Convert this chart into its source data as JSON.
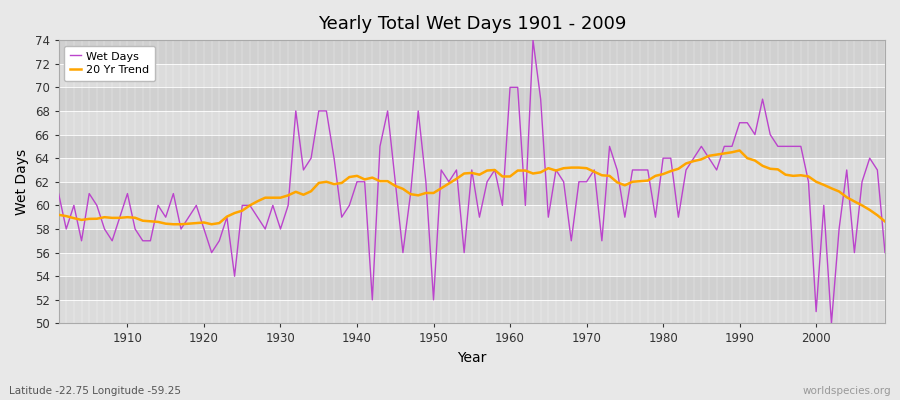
{
  "title": "Yearly Total Wet Days 1901 - 2009",
  "xlabel": "Year",
  "ylabel": "Wet Days",
  "subtitle": "Latitude -22.75 Longitude -59.25",
  "watermark": "worldspecies.org",
  "years": [
    1901,
    1902,
    1903,
    1904,
    1905,
    1906,
    1907,
    1908,
    1909,
    1910,
    1911,
    1912,
    1913,
    1914,
    1915,
    1916,
    1917,
    1918,
    1919,
    1920,
    1921,
    1922,
    1923,
    1924,
    1925,
    1926,
    1927,
    1928,
    1929,
    1930,
    1931,
    1932,
    1933,
    1934,
    1935,
    1936,
    1937,
    1938,
    1939,
    1940,
    1941,
    1942,
    1943,
    1944,
    1945,
    1946,
    1947,
    1948,
    1949,
    1950,
    1951,
    1952,
    1953,
    1954,
    1955,
    1956,
    1957,
    1958,
    1959,
    1960,
    1961,
    1962,
    1963,
    1964,
    1965,
    1966,
    1967,
    1968,
    1969,
    1970,
    1971,
    1972,
    1973,
    1974,
    1975,
    1976,
    1977,
    1978,
    1979,
    1980,
    1981,
    1982,
    1983,
    1984,
    1985,
    1986,
    1987,
    1988,
    1989,
    1990,
    1991,
    1992,
    1993,
    1994,
    1995,
    1996,
    1997,
    1998,
    1999,
    2000,
    2001,
    2002,
    2003,
    2004,
    2005,
    2006,
    2007,
    2008,
    2009
  ],
  "wet_days": [
    61,
    58,
    60,
    57,
    61,
    60,
    58,
    57,
    59,
    61,
    58,
    57,
    57,
    60,
    59,
    61,
    58,
    59,
    60,
    58,
    56,
    57,
    59,
    54,
    60,
    60,
    59,
    58,
    60,
    58,
    60,
    68,
    63,
    64,
    68,
    68,
    64,
    59,
    60,
    62,
    62,
    52,
    65,
    68,
    62,
    56,
    61,
    68,
    62,
    52,
    63,
    62,
    63,
    56,
    63,
    59,
    62,
    63,
    60,
    70,
    70,
    60,
    74,
    69,
    59,
    63,
    62,
    57,
    62,
    62,
    63,
    57,
    65,
    63,
    59,
    63,
    63,
    63,
    59,
    64,
    64,
    59,
    63,
    64,
    65,
    64,
    63,
    65,
    65,
    67,
    67,
    66,
    69,
    66,
    65,
    65,
    65,
    65,
    62,
    51,
    60,
    50,
    58,
    63,
    56,
    62,
    64,
    63,
    56
  ],
  "wet_days_color": "#BB44CC",
  "trend_color": "#FFA500",
  "background_color": "#E8E8E8",
  "plot_bg_color_light": "#DCDCDC",
  "plot_bg_color_dark": "#D0D0D0",
  "ylim": [
    50,
    74
  ],
  "yticks": [
    50,
    52,
    54,
    56,
    58,
    60,
    62,
    64,
    66,
    68,
    70,
    72,
    74
  ],
  "xlim": [
    1901,
    2009
  ],
  "xticks": [
    1910,
    1920,
    1930,
    1940,
    1950,
    1960,
    1970,
    1980,
    1990,
    2000
  ]
}
